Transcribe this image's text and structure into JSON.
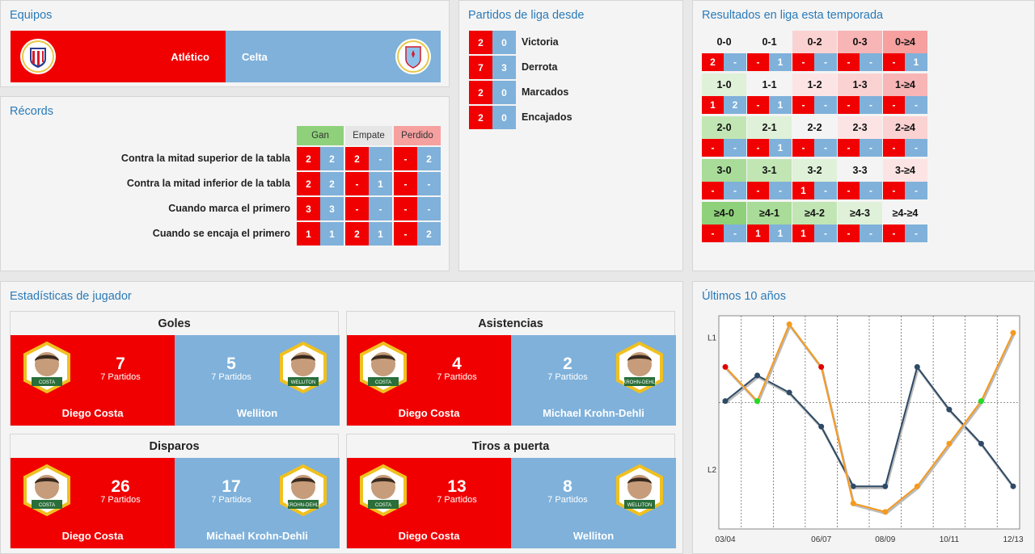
{
  "equipos": {
    "title": "Equipos",
    "home": "Atlético",
    "away": "Celta"
  },
  "records": {
    "title": "Récords",
    "headers": [
      "Gan",
      "Empate",
      "Perdido"
    ],
    "rows": [
      {
        "label": "Contra la mitad superior de la tabla",
        "vals": [
          "2",
          "2",
          "2",
          "-",
          "-",
          "2"
        ]
      },
      {
        "label": "Contra la mitad inferior de la tabla",
        "vals": [
          "2",
          "2",
          "-",
          "1",
          "-",
          "-"
        ]
      },
      {
        "label": "Cuando marca el primero",
        "vals": [
          "3",
          "3",
          "-",
          "-",
          "-",
          "-"
        ]
      },
      {
        "label": "Cuando se encaja el primero",
        "vals": [
          "1",
          "1",
          "2",
          "1",
          "-",
          "2"
        ]
      }
    ]
  },
  "partidos": {
    "title": "Partidos de liga desde",
    "rows": [
      {
        "home": "2",
        "away": "0",
        "label": "Victoria"
      },
      {
        "home": "7",
        "away": "3",
        "label": "Derrota"
      },
      {
        "home": "2",
        "away": "0",
        "label": "Marcados"
      },
      {
        "home": "2",
        "away": "0",
        "label": "Encajados"
      }
    ]
  },
  "resultados": {
    "title": "Resultados en liga esta temporada",
    "rows": [
      {
        "scores": [
          "0-0",
          "0-1",
          "0-2",
          "0-3",
          "0-≥4"
        ],
        "colors": [
          "#f4f4f4",
          "#f4f4f4",
          "#fbd2d2",
          "#f8b5b5",
          "#f6a0a0"
        ],
        "vals": [
          "2",
          "-",
          "-",
          "1",
          "-",
          "-",
          "-",
          "-",
          "-",
          "1"
        ]
      },
      {
        "scores": [
          "1-0",
          "1-1",
          "1-2",
          "1-3",
          "1-≥4"
        ],
        "colors": [
          "#dff1d8",
          "#f4f4f4",
          "#fde4e4",
          "#fbd2d2",
          "#f8b5b5"
        ],
        "vals": [
          "1",
          "2",
          "-",
          "1",
          "-",
          "-",
          "-",
          "-",
          "-",
          "-"
        ]
      },
      {
        "scores": [
          "2-0",
          "2-1",
          "2-2",
          "2-3",
          "2-≥4"
        ],
        "colors": [
          "#c1e6b4",
          "#dff1d8",
          "#f4f4f4",
          "#fde4e4",
          "#fbd2d2"
        ],
        "vals": [
          "-",
          "-",
          "-",
          "1",
          "-",
          "-",
          "-",
          "-",
          "-",
          "-"
        ]
      },
      {
        "scores": [
          "3-0",
          "3-1",
          "3-2",
          "3-3",
          "3-≥4"
        ],
        "colors": [
          "#a8dc98",
          "#c1e6b4",
          "#dff1d8",
          "#f4f4f4",
          "#fde4e4"
        ],
        "vals": [
          "-",
          "-",
          "-",
          "-",
          "1",
          "-",
          "-",
          "-",
          "-",
          "-"
        ]
      },
      {
        "scores": [
          "≥4-0",
          "≥4-1",
          "≥4-2",
          "≥4-3",
          "≥4-≥4"
        ],
        "colors": [
          "#8fd17a",
          "#a8dc98",
          "#c1e6b4",
          "#dff1d8",
          "#f4f4f4"
        ],
        "vals": [
          "-",
          "-",
          "1",
          "1",
          "1",
          "-",
          "-",
          "-",
          "-",
          "-"
        ]
      }
    ]
  },
  "jugadores": {
    "title": "Estadísticas de jugador",
    "cards": [
      {
        "title": "Goles",
        "home": {
          "value": "7",
          "sub": "7 Partidos",
          "name": "Diego Costa",
          "tag": "COSTA"
        },
        "away": {
          "value": "5",
          "sub": "7 Partidos",
          "name": "Welliton",
          "tag": "WELLITON"
        }
      },
      {
        "title": "Asistencias",
        "home": {
          "value": "4",
          "sub": "7 Partidos",
          "name": "Diego Costa",
          "tag": "COSTA"
        },
        "away": {
          "value": "2",
          "sub": "7 Partidos",
          "name": "Michael Krohn-Dehli",
          "tag": "KROHN-DEHLI"
        }
      },
      {
        "title": "Disparos",
        "home": {
          "value": "26",
          "sub": "7 Partidos",
          "name": "Diego Costa",
          "tag": "COSTA"
        },
        "away": {
          "value": "17",
          "sub": "7 Partidos",
          "name": "Michael Krohn-Dehli",
          "tag": "KROHN-DEHLI"
        }
      },
      {
        "title": "Tiros a puerta",
        "home": {
          "value": "13",
          "sub": "7 Partidos",
          "name": "Diego Costa",
          "tag": "COSTA"
        },
        "away": {
          "value": "8",
          "sub": "7 Partidos",
          "name": "Welliton",
          "tag": "WELLITON"
        }
      }
    ]
  },
  "ultimos": {
    "title": "Últimos 10 años"
  },
  "chart_data": {
    "type": "line",
    "x": [
      "03/04",
      "04/05",
      "05/06",
      "06/07",
      "07/08",
      "08/09",
      "09/10",
      "10/11",
      "11/12",
      "12/13"
    ],
    "xlabels": [
      "03/04",
      "06/07",
      "08/09",
      "10/11",
      "12/13"
    ],
    "ylabels": [
      "L1",
      "L2"
    ],
    "series": [
      {
        "color": "#2e4a66",
        "values": [
          7,
          4,
          6,
          10,
          17,
          17,
          3,
          8,
          12,
          17
        ]
      },
      {
        "color": "#f59a1f",
        "values": [
          3,
          7,
          -2,
          3,
          19,
          20,
          17,
          12,
          7,
          -1
        ],
        "markers": [
          {
            "i": 0,
            "color": "#e00000"
          },
          {
            "i": 1,
            "color": "#22dd22"
          },
          {
            "i": 3,
            "color": "#e00000"
          },
          {
            "i": 8,
            "color": "#22dd22"
          }
        ]
      }
    ],
    "ylim": [
      -3,
      22
    ]
  }
}
